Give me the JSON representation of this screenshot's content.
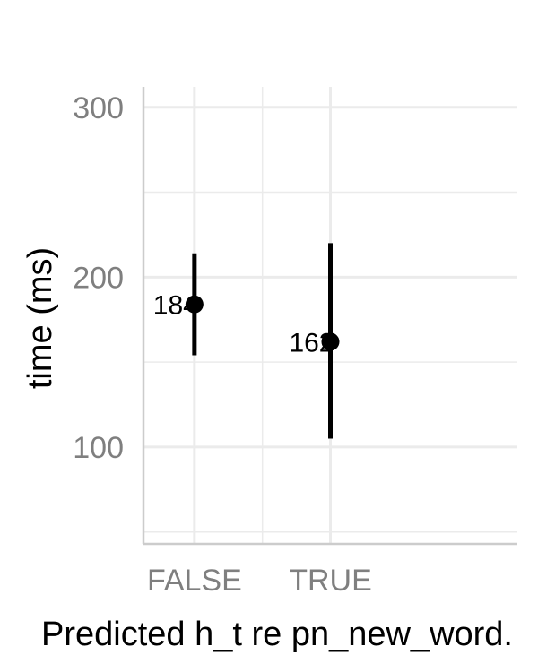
{
  "chart_data": {
    "type": "scatter",
    "title": "",
    "xlabel": "Predicted h_t re pn_new_word.",
    "ylabel": "time (ms)",
    "categories": [
      "FALSE",
      "TRUE"
    ],
    "values": [
      184,
      162
    ],
    "lower": [
      154,
      105
    ],
    "upper": [
      214,
      220
    ],
    "point_labels": [
      "184",
      "162"
    ],
    "ylim": [
      43,
      312
    ],
    "yticks": [
      100,
      200,
      300
    ],
    "ytick_labels": [
      "100",
      "200",
      "300"
    ],
    "y_minor_ticks": [
      50,
      150,
      250
    ],
    "grid": true,
    "legend": "none",
    "colors": {
      "point": "#000000",
      "errorbar": "#000000",
      "grid": "#ebebeb",
      "axis": "#cccccc",
      "tick_label": "#7f7f7f"
    }
  }
}
